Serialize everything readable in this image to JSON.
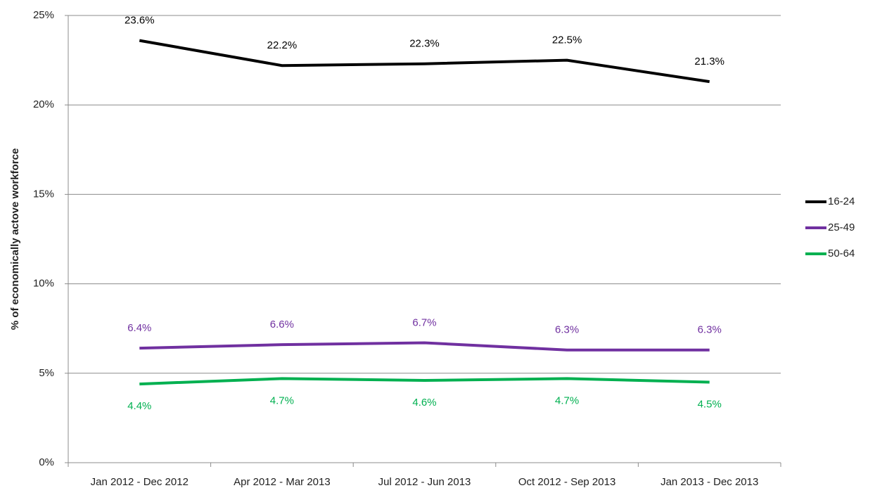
{
  "chart_data": {
    "type": "line",
    "y_label": "% of economically actove workforce",
    "categories": [
      "Jan 2012 - Dec 2012",
      "Apr 2012 - Mar 2013",
      "Jul 2012 - Jun 2013",
      "Oct 2012 - Sep 2013",
      "Jan 2013 - Dec 2013"
    ],
    "series": [
      {
        "name": "16-24",
        "color": "#000000",
        "values": [
          23.6,
          22.2,
          22.3,
          22.5,
          21.3
        ],
        "value_labels": [
          "23.6%",
          "22.2%",
          "22.3%",
          "22.5%",
          "21.3%"
        ]
      },
      {
        "name": "25-49",
        "color": "#7030a0",
        "values": [
          6.4,
          6.6,
          6.7,
          6.3,
          6.3
        ],
        "value_labels": [
          "6.4%",
          "6.6%",
          "6.7%",
          "6.3%",
          "6.3%"
        ]
      },
      {
        "name": "50-64",
        "color": "#00b050",
        "values": [
          4.4,
          4.7,
          4.6,
          4.7,
          4.5
        ],
        "value_labels": [
          "4.4%",
          "4.7%",
          "4.6%",
          "4.7%",
          "4.5%"
        ]
      }
    ],
    "ylim": [
      0,
      25
    ],
    "yticks": [
      {
        "value": 0,
        "label": "0%"
      },
      {
        "value": 5,
        "label": "5%"
      },
      {
        "value": 10,
        "label": "10%"
      },
      {
        "value": 15,
        "label": "15%"
      },
      {
        "value": 20,
        "label": "20%"
      },
      {
        "value": 25,
        "label": "25%"
      }
    ],
    "grid": true,
    "legend": "right"
  }
}
